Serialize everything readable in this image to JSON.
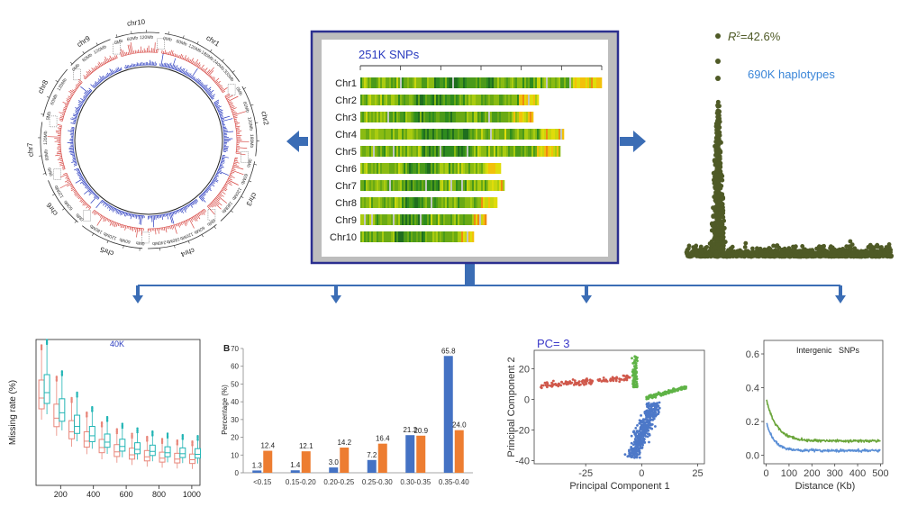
{
  "colors": {
    "frame_border": "#2b2f8f",
    "frame_bg": "#bdbdbd",
    "arrow": "#3b6db5",
    "red_track": "#d64541",
    "blue_track": "#2a3bbf",
    "manhattan": "#4f5a26",
    "bar_blue": "#4472c4",
    "bar_orange": "#ed7d31",
    "box_red": "#e8867a",
    "box_teal": "#22b5b5",
    "pca_red": "#d0584b",
    "pca_green": "#5fb346",
    "pca_blue": "#4d78c8",
    "ld_green": "#6aa53a",
    "ld_blue": "#5b8fd6"
  },
  "circos": {
    "chromosomes": [
      {
        "name": "chr1",
        "ticks": [
          "0Mb",
          "60Mb",
          "120Mb",
          "180Mb",
          "240Mb",
          "300Mb"
        ]
      },
      {
        "name": "chr2",
        "ticks": [
          "0Mb",
          "60Mb",
          "120Mb",
          "180Mb"
        ]
      },
      {
        "name": "chr3",
        "ticks": [
          "0Mb",
          "60Mb",
          "120Mb",
          "180Mb"
        ]
      },
      {
        "name": "chr4",
        "ticks": [
          "0Mb",
          "60Mb",
          "120Mb",
          "180Mb",
          "240Mb"
        ]
      },
      {
        "name": "chr5",
        "ticks": [
          "0Mb",
          "60Mb",
          "120Mb",
          "180Mb"
        ]
      },
      {
        "name": "chr6",
        "ticks": [
          "0Mb",
          "60Mb",
          "120Mb"
        ]
      },
      {
        "name": "chr7",
        "ticks": [
          "0Mb",
          "60Mb",
          "120Mb"
        ]
      },
      {
        "name": "chr8",
        "ticks": [
          "0Mb",
          "60Mb",
          "120Mb"
        ]
      },
      {
        "name": "chr9",
        "ticks": [
          "0Mb",
          "60Mb",
          "120Mb"
        ]
      },
      {
        "name": "chr10",
        "ticks": [
          "0Mb",
          "60Mb",
          "120Mb"
        ]
      }
    ]
  },
  "snp_panel": {
    "title": "251K SNPs",
    "chromosomes": [
      "Chr1",
      "Chr2",
      "Chr3",
      "Chr4",
      "Chr5",
      "Chr6",
      "Chr7",
      "Chr8",
      "Chr9",
      "Chr10"
    ],
    "relative_lengths": [
      1.0,
      0.74,
      0.72,
      0.84,
      0.83,
      0.58,
      0.6,
      0.57,
      0.52,
      0.47
    ]
  },
  "manhattan": {
    "r2_label": "R",
    "r2_sup": "2",
    "r2_value": "=42.6%",
    "haplotypes_label": "690K haplotypes"
  },
  "missing_rate_chart": {
    "type": "box",
    "title": "40K",
    "ylabel": "Missing rate (%)",
    "x_ticks": [
      "200",
      "400",
      "600",
      "800",
      "1000"
    ]
  },
  "percentage_chart": {
    "type": "bar",
    "panel_label": "B",
    "ylabel": "Percentage (%)",
    "ylim": [
      0,
      70
    ],
    "y_ticks": [
      "0",
      "10",
      "20",
      "30",
      "40",
      "50",
      "60",
      "70"
    ],
    "categories": [
      "<0.15",
      "0.15-0.20",
      "0.20-0.25",
      "0.25-0.30",
      "0.30-0.35",
      "0.35-0.40"
    ],
    "series": [
      {
        "name": "blue",
        "values": [
          1.3,
          1.4,
          3.0,
          7.2,
          21.2,
          65.8
        ]
      },
      {
        "name": "orange",
        "values": [
          12.4,
          12.1,
          14.2,
          16.4,
          20.9,
          24.0
        ]
      }
    ],
    "value_labels": [
      [
        "1.3",
        "1.4",
        "3.0",
        "7.2",
        "21.2",
        "65.8"
      ],
      [
        "12.4",
        "12.1",
        "14.2",
        "16.4",
        "20.9",
        "24.0"
      ]
    ]
  },
  "pca_chart": {
    "type": "scatter",
    "title": "PC= 3",
    "xlabel": "Principal Component 1",
    "ylabel": "Principal Component 2",
    "x_ticks": [
      "-25",
      "0",
      "25"
    ],
    "y_ticks": [
      "20",
      "0",
      "-20",
      "-40"
    ]
  },
  "ld_chart": {
    "type": "line",
    "title": "Intergenic   SNPs",
    "xlabel": "Distance (Kb)",
    "x_ticks": [
      "0",
      "100",
      "200",
      "300",
      "400",
      "500"
    ],
    "y_ticks": [
      "0.6",
      "0.4",
      "0.2",
      "0.0"
    ]
  }
}
